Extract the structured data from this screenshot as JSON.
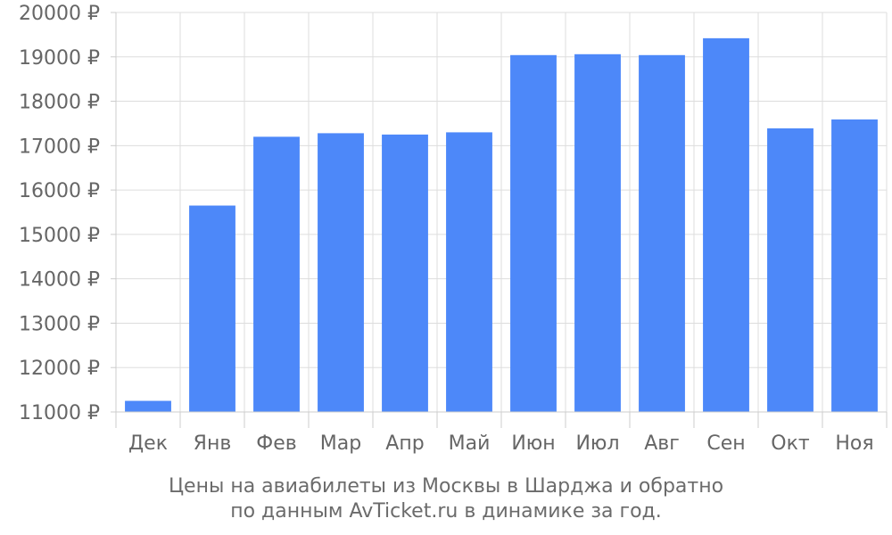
{
  "chart_data": {
    "type": "bar",
    "categories": [
      "Дек",
      "Янв",
      "Фев",
      "Мар",
      "Апр",
      "Май",
      "Июн",
      "Июл",
      "Авг",
      "Сен",
      "Окт",
      "Ноя"
    ],
    "values": [
      11250,
      15650,
      17200,
      17280,
      17250,
      17300,
      19040,
      19060,
      19040,
      19420,
      17390,
      17590
    ],
    "ylim": [
      11000,
      20000
    ],
    "yticks": [
      11000,
      12000,
      13000,
      14000,
      15000,
      16000,
      17000,
      18000,
      19000,
      20000
    ],
    "ytick_suffix": " ₽",
    "bar_color": "#4d88f9",
    "grid": true,
    "legend": "none"
  },
  "caption": {
    "line1": "Цены на авиабилеты из Москвы в Шарджа и обратно",
    "line2": "по данным AvTicket.ru в динамике за год."
  }
}
